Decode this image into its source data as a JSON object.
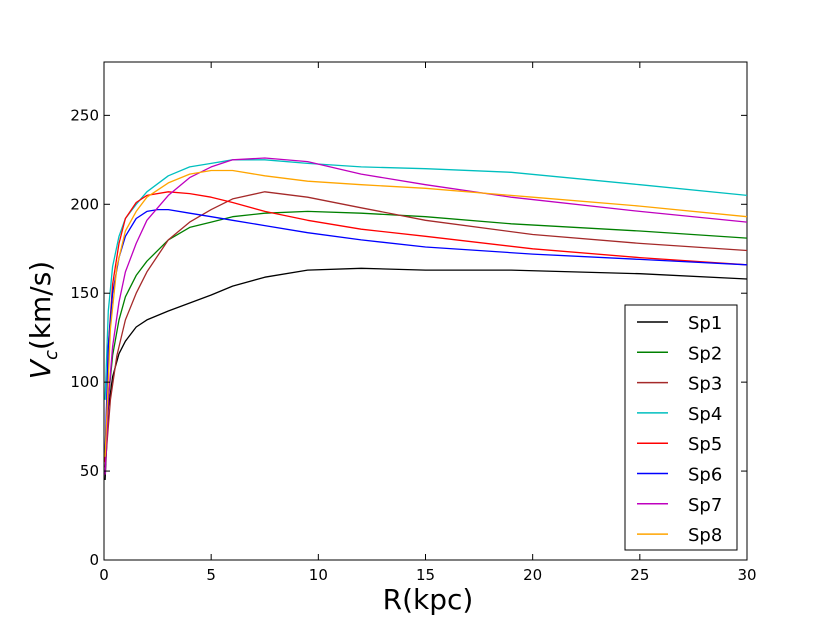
{
  "chart_data": {
    "type": "line",
    "xlabel": "R(kpc)",
    "ylabel_main": "V",
    "ylabel_sub": "c",
    "ylabel_rest": "(km/s)",
    "xlim": [
      0,
      30
    ],
    "ylim": [
      0,
      280
    ],
    "xticks": [
      0,
      5,
      10,
      15,
      20,
      25,
      30
    ],
    "yticks": [
      0,
      50,
      100,
      150,
      200,
      250
    ],
    "grid": false,
    "legend_position": "lower-right",
    "series": [
      {
        "name": "Sp1",
        "color": "#000000",
        "points": [
          [
            0.05,
            45
          ],
          [
            0.2,
            85
          ],
          [
            0.4,
            103
          ],
          [
            0.7,
            116
          ],
          [
            1.0,
            123
          ],
          [
            1.5,
            131
          ],
          [
            2.0,
            135
          ],
          [
            3.0,
            140
          ],
          [
            5.0,
            149
          ],
          [
            6.0,
            154
          ],
          [
            7.5,
            159
          ],
          [
            9.5,
            163
          ],
          [
            12.0,
            164
          ],
          [
            15.0,
            163
          ],
          [
            19.0,
            163
          ],
          [
            25.0,
            161
          ],
          [
            30.0,
            158
          ]
        ]
      },
      {
        "name": "Sp2",
        "color": "#008000",
        "points": [
          [
            0.05,
            55
          ],
          [
            0.2,
            90
          ],
          [
            0.4,
            115
          ],
          [
            0.7,
            135
          ],
          [
            1.0,
            148
          ],
          [
            1.5,
            160
          ],
          [
            2.0,
            168
          ],
          [
            3.0,
            180
          ],
          [
            4.0,
            187
          ],
          [
            5.0,
            190
          ],
          [
            6.0,
            193
          ],
          [
            7.5,
            195
          ],
          [
            9.5,
            196
          ],
          [
            12.0,
            195
          ],
          [
            15.0,
            193
          ],
          [
            19.0,
            189
          ],
          [
            25.0,
            185
          ],
          [
            30.0,
            181
          ]
        ]
      },
      {
        "name": "Sp3",
        "color": "#A52A2A",
        "points": [
          [
            0.05,
            52
          ],
          [
            0.3,
            90
          ],
          [
            0.6,
            115
          ],
          [
            1.0,
            135
          ],
          [
            1.5,
            150
          ],
          [
            2.0,
            162
          ],
          [
            3.0,
            180
          ],
          [
            4.0,
            190
          ],
          [
            5.0,
            197
          ],
          [
            6.0,
            203
          ],
          [
            7.5,
            207
          ],
          [
            9.5,
            204
          ],
          [
            12.0,
            198
          ],
          [
            15.0,
            191
          ],
          [
            20.0,
            183
          ],
          [
            25.0,
            178
          ],
          [
            30.0,
            174
          ]
        ]
      },
      {
        "name": "Sp4",
        "color": "#00BFBF",
        "points": [
          [
            0.05,
            90
          ],
          [
            0.2,
            140
          ],
          [
            0.4,
            165
          ],
          [
            0.7,
            182
          ],
          [
            1.0,
            192
          ],
          [
            1.5,
            200
          ],
          [
            2.0,
            207
          ],
          [
            3.0,
            216
          ],
          [
            4.0,
            221
          ],
          [
            5.0,
            223
          ],
          [
            6.0,
            225
          ],
          [
            7.5,
            225
          ],
          [
            9.5,
            223
          ],
          [
            12.0,
            221
          ],
          [
            15.0,
            220
          ],
          [
            19.0,
            218
          ],
          [
            25.0,
            211
          ],
          [
            30.0,
            205
          ]
        ]
      },
      {
        "name": "Sp5",
        "color": "#FF0000",
        "points": [
          [
            0.05,
            55
          ],
          [
            0.2,
            120
          ],
          [
            0.4,
            155
          ],
          [
            0.7,
            178
          ],
          [
            1.0,
            192
          ],
          [
            1.5,
            201
          ],
          [
            2.0,
            205
          ],
          [
            3.0,
            207
          ],
          [
            4.0,
            206
          ],
          [
            5.0,
            204
          ],
          [
            6.0,
            201
          ],
          [
            7.5,
            196
          ],
          [
            9.5,
            191
          ],
          [
            12.0,
            186
          ],
          [
            15.0,
            182
          ],
          [
            20.0,
            175
          ],
          [
            25.0,
            170
          ],
          [
            30.0,
            166
          ]
        ]
      },
      {
        "name": "Sp6",
        "color": "#0000FF",
        "points": [
          [
            0.05,
            60
          ],
          [
            0.2,
            120
          ],
          [
            0.4,
            150
          ],
          [
            0.7,
            170
          ],
          [
            1.0,
            182
          ],
          [
            1.5,
            192
          ],
          [
            2.0,
            196
          ],
          [
            2.5,
            197
          ],
          [
            3.0,
            197
          ],
          [
            4.0,
            195
          ],
          [
            5.0,
            193
          ],
          [
            6.0,
            191
          ],
          [
            7.5,
            188
          ],
          [
            9.5,
            184
          ],
          [
            12.0,
            180
          ],
          [
            15.0,
            176
          ],
          [
            20.0,
            172
          ],
          [
            25.0,
            169
          ],
          [
            30.0,
            166
          ]
        ]
      },
      {
        "name": "Sp7",
        "color": "#BF00BF",
        "points": [
          [
            0.05,
            48
          ],
          [
            0.2,
            90
          ],
          [
            0.4,
            120
          ],
          [
            0.7,
            145
          ],
          [
            1.0,
            162
          ],
          [
            1.5,
            178
          ],
          [
            2.0,
            191
          ],
          [
            3.0,
            205
          ],
          [
            4.0,
            215
          ],
          [
            5.0,
            221
          ],
          [
            6.0,
            225
          ],
          [
            7.5,
            226
          ],
          [
            9.5,
            224
          ],
          [
            12.0,
            217
          ],
          [
            15.0,
            211
          ],
          [
            19.0,
            204
          ],
          [
            25.0,
            196
          ],
          [
            30.0,
            190
          ]
        ]
      },
      {
        "name": "Sp8",
        "color": "#FFA500",
        "points": [
          [
            0.05,
            58
          ],
          [
            0.3,
            130
          ],
          [
            0.6,
            165
          ],
          [
            1.0,
            185
          ],
          [
            1.5,
            196
          ],
          [
            2.0,
            204
          ],
          [
            3.0,
            212
          ],
          [
            4.0,
            217
          ],
          [
            5.0,
            219
          ],
          [
            6.0,
            219
          ],
          [
            7.5,
            216
          ],
          [
            9.5,
            213
          ],
          [
            12.0,
            211
          ],
          [
            15.0,
            209
          ],
          [
            20.0,
            204
          ],
          [
            25.0,
            199
          ],
          [
            30.0,
            193
          ]
        ]
      }
    ]
  }
}
